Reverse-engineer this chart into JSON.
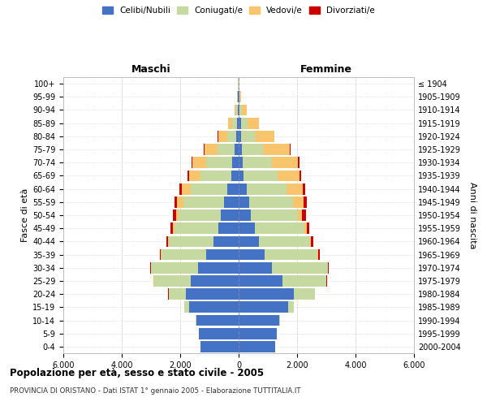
{
  "age_groups": [
    "0-4",
    "5-9",
    "10-14",
    "15-19",
    "20-24",
    "25-29",
    "30-34",
    "35-39",
    "40-44",
    "45-49",
    "50-54",
    "55-59",
    "60-64",
    "65-69",
    "70-74",
    "75-79",
    "80-84",
    "85-89",
    "90-94",
    "95-99",
    "100+"
  ],
  "birth_years": [
    "2000-2004",
    "1995-1999",
    "1990-1994",
    "1985-1989",
    "1980-1984",
    "1975-1979",
    "1970-1974",
    "1965-1969",
    "1960-1964",
    "1955-1959",
    "1950-1954",
    "1945-1949",
    "1940-1944",
    "1935-1939",
    "1930-1934",
    "1925-1929",
    "1920-1924",
    "1915-1919",
    "1910-1914",
    "1905-1909",
    "≤ 1904"
  ],
  "colors": {
    "celibe": "#4472C4",
    "coniugato": "#C6D9A0",
    "vedovo": "#F8C56D",
    "divorziato": "#CC0000"
  },
  "maschi": {
    "celibe": [
      1300,
      1350,
      1450,
      1700,
      1800,
      1650,
      1400,
      1100,
      850,
      700,
      600,
      500,
      380,
      250,
      220,
      130,
      80,
      60,
      30,
      20,
      10
    ],
    "coniugato": [
      2,
      5,
      20,
      150,
      600,
      1250,
      1600,
      1550,
      1550,
      1500,
      1450,
      1400,
      1250,
      1050,
      900,
      600,
      320,
      160,
      50,
      15,
      5
    ],
    "vedovo": [
      0,
      0,
      0,
      1,
      2,
      3,
      5,
      10,
      20,
      50,
      100,
      200,
      320,
      400,
      450,
      450,
      300,
      150,
      50,
      10,
      2
    ],
    "divorziato": [
      0,
      0,
      0,
      1,
      3,
      10,
      20,
      40,
      60,
      80,
      100,
      100,
      80,
      60,
      50,
      25,
      10,
      5,
      2,
      1,
      0
    ]
  },
  "femmine": {
    "celibe": [
      1250,
      1300,
      1400,
      1700,
      1900,
      1500,
      1150,
      900,
      700,
      550,
      430,
      370,
      290,
      180,
      150,
      110,
      90,
      70,
      40,
      25,
      10
    ],
    "coniugato": [
      3,
      8,
      30,
      200,
      700,
      1500,
      1900,
      1800,
      1750,
      1700,
      1600,
      1500,
      1350,
      1150,
      980,
      730,
      480,
      230,
      80,
      20,
      5
    ],
    "vedovo": [
      0,
      0,
      0,
      1,
      2,
      5,
      8,
      15,
      30,
      70,
      150,
      350,
      550,
      750,
      900,
      900,
      650,
      400,
      150,
      30,
      5
    ],
    "divorziato": [
      0,
      0,
      0,
      1,
      4,
      10,
      25,
      50,
      80,
      100,
      120,
      100,
      80,
      60,
      50,
      30,
      15,
      8,
      3,
      1,
      0
    ]
  },
  "xlim": 6000,
  "xticks": [
    -6000,
    -4000,
    -2000,
    0,
    2000,
    4000,
    6000
  ],
  "xticklabels": [
    "6.000",
    "4.000",
    "2.000",
    "0",
    "2.000",
    "4.000",
    "6.000"
  ],
  "title": "Popolazione per età, sesso e stato civile - 2005",
  "subtitle": "PROVINCIA DI ORISTANO - Dati ISTAT 1° gennaio 2005 - Elaborazione TUTTITALIA.IT",
  "left_label": "Maschi",
  "right_label": "Femmine",
  "ylabel_left": "Fasce di età",
  "ylabel_right": "Anni di nascita",
  "legend_labels": [
    "Celibi/Nubili",
    "Coniugati/e",
    "Vedovi/e",
    "Divorziati/e"
  ],
  "legend_colors": [
    "#4472C4",
    "#C6D9A0",
    "#F8C56D",
    "#CC0000"
  ],
  "bg_color": "#FFFFFF",
  "grid_color": "#CCCCCC"
}
